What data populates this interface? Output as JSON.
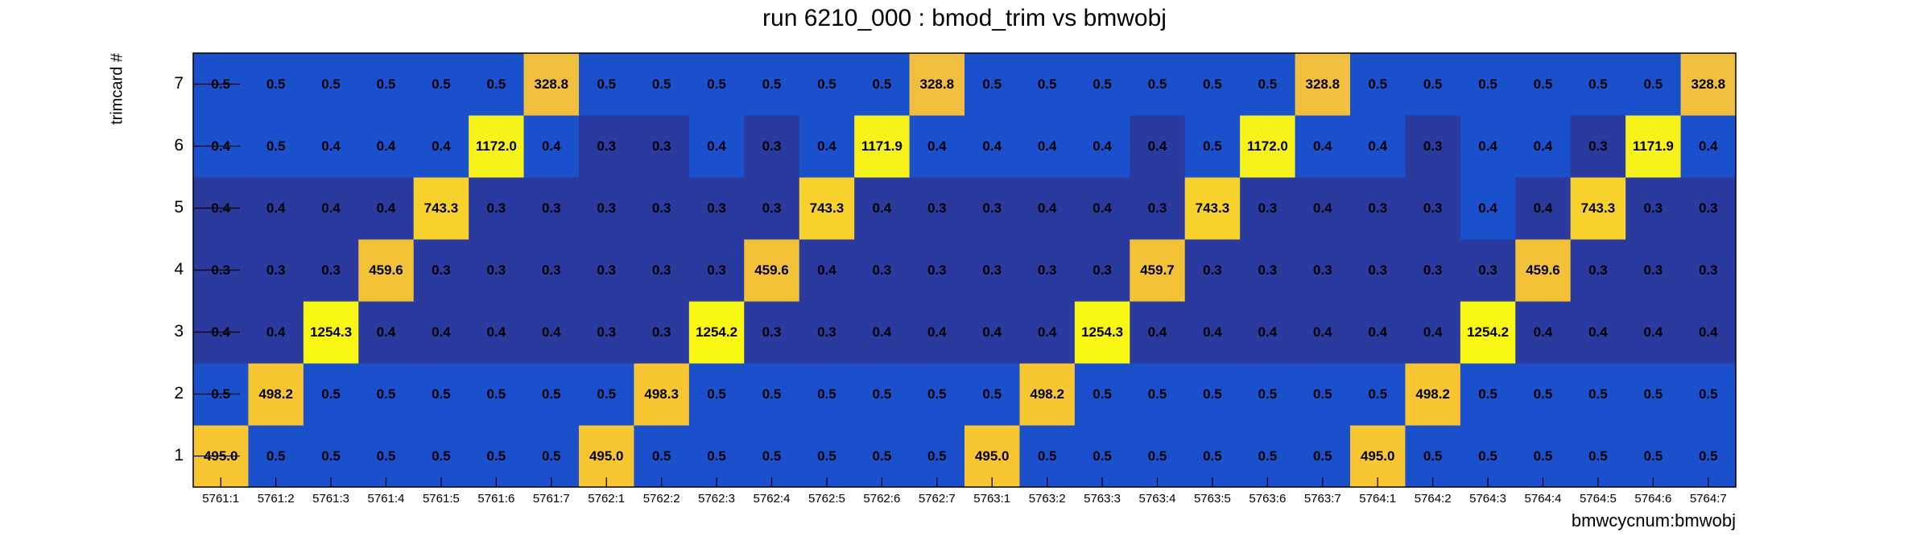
{
  "chart_data": {
    "type": "heatmap",
    "title": "run 6210_000 : bmod_trim vs bmwobj",
    "x_label": "bmwcycnum:bmwobj",
    "y_label": "trimcard #",
    "categories": [
      "5761:1",
      "5761:2",
      "5761:3",
      "5761:4",
      "5761:5",
      "5761:6",
      "5761:7",
      "5762:1",
      "5762:2",
      "5762:3",
      "5762:4",
      "5762:5",
      "5762:6",
      "5762:7",
      "5763:1",
      "5763:2",
      "5763:3",
      "5763:4",
      "5763:5",
      "5763:6",
      "5763:7",
      "5764:1",
      "5764:2",
      "5764:3",
      "5764:4",
      "5764:5",
      "5764:6",
      "5764:7"
    ],
    "series": [
      {
        "name": "1",
        "values": [
          495.0,
          0.5,
          0.5,
          0.5,
          0.5,
          0.5,
          0.5,
          495.0,
          0.5,
          0.5,
          0.5,
          0.5,
          0.5,
          0.5,
          495.0,
          0.5,
          0.5,
          0.5,
          0.5,
          0.5,
          0.5,
          495.0,
          0.5,
          0.5,
          0.5,
          0.5,
          0.5,
          0.5
        ],
        "value_labels": [
          "495.0",
          "0.5",
          "0.5",
          "0.5",
          "0.5",
          "0.5",
          "0.5",
          "495.0",
          "0.5",
          "0.5",
          "0.5",
          "0.5",
          "0.5",
          "0.5",
          "495.0",
          "0.5",
          "0.5",
          "0.5",
          "0.5",
          "0.5",
          "0.5",
          "495.0",
          "0.5",
          "0.5",
          "0.5",
          "0.5",
          "0.5",
          "0.5"
        ],
        "colors": [
          "#f7c631",
          "#1a50cc",
          "#1a50cc",
          "#1a50cc",
          "#1a50cc",
          "#1a50cc",
          "#1a50cc",
          "#f7c631",
          "#1a50cc",
          "#1a50cc",
          "#1a50cc",
          "#1a50cc",
          "#1a50cc",
          "#1a50cc",
          "#f7c631",
          "#1a50cc",
          "#1a50cc",
          "#1a50cc",
          "#1a50cc",
          "#1a50cc",
          "#1a50cc",
          "#f7c631",
          "#1a50cc",
          "#1a50cc",
          "#1a50cc",
          "#1a50cc",
          "#1a50cc",
          "#1a50cc"
        ]
      },
      {
        "name": "2",
        "values": [
          0.5,
          498.2,
          0.5,
          0.5,
          0.5,
          0.5,
          0.5,
          0.5,
          498.3,
          0.5,
          0.5,
          0.5,
          0.5,
          0.5,
          0.5,
          498.2,
          0.5,
          0.5,
          0.5,
          0.5,
          0.5,
          0.5,
          498.2,
          0.5,
          0.5,
          0.5,
          0.5,
          0.5
        ],
        "colors": [
          "#1a50cc",
          "#f7c631",
          "#1a50cc",
          "#1a50cc",
          "#1a50cc",
          "#1a50cc",
          "#1a50cc",
          "#1a50cc",
          "#f7c631",
          "#1a50cc",
          "#1a50cc",
          "#1a50cc",
          "#1a50cc",
          "#1a50cc",
          "#1a50cc",
          "#f7c631",
          "#1a50cc",
          "#1a50cc",
          "#1a50cc",
          "#1a50cc",
          "#1a50cc",
          "#1a50cc",
          "#f7c631",
          "#1a50cc",
          "#1a50cc",
          "#1a50cc",
          "#1a50cc",
          "#1a50cc"
        ]
      },
      {
        "name": "3",
        "values": [
          0.4,
          0.4,
          1254.3,
          0.4,
          0.4,
          0.4,
          0.4,
          0.3,
          0.3,
          1254.2,
          0.3,
          0.3,
          0.4,
          0.4,
          0.4,
          0.4,
          1254.3,
          0.4,
          0.4,
          0.4,
          0.4,
          0.4,
          0.4,
          1254.2,
          0.4,
          0.4,
          0.4,
          0.4
        ],
        "colors": [
          "#2a3a9e",
          "#2a3a9e",
          "#f8f814",
          "#2a3a9e",
          "#2a3a9e",
          "#2a3a9e",
          "#2a3a9e",
          "#2a3a9e",
          "#2a3a9e",
          "#f8f814",
          "#2a3a9e",
          "#2a3a9e",
          "#2a3a9e",
          "#2a3a9e",
          "#2a3a9e",
          "#2a3a9e",
          "#f8f814",
          "#2a3a9e",
          "#2a3a9e",
          "#2a3a9e",
          "#2a3a9e",
          "#2a3a9e",
          "#2a3a9e",
          "#f8f814",
          "#2a3a9e",
          "#2a3a9e",
          "#2a3a9e",
          "#2a3a9e"
        ]
      },
      {
        "name": "4",
        "values": [
          0.3,
          0.3,
          0.3,
          459.6,
          0.3,
          0.3,
          0.3,
          0.3,
          0.3,
          0.3,
          459.6,
          0.4,
          0.3,
          0.3,
          0.3,
          0.3,
          0.3,
          459.7,
          0.3,
          0.3,
          0.3,
          0.3,
          0.3,
          0.3,
          459.6,
          0.3,
          0.3,
          0.3
        ],
        "colors": [
          "#2a3a9e",
          "#2a3a9e",
          "#2a3a9e",
          "#f4c236",
          "#2a3a9e",
          "#2a3a9e",
          "#2a3a9e",
          "#2a3a9e",
          "#2a3a9e",
          "#2a3a9e",
          "#f4c236",
          "#2a3a9e",
          "#2a3a9e",
          "#2a3a9e",
          "#2a3a9e",
          "#2a3a9e",
          "#2a3a9e",
          "#f4c236",
          "#2a3a9e",
          "#2a3a9e",
          "#2a3a9e",
          "#2a3a9e",
          "#2a3a9e",
          "#2a3a9e",
          "#f4c236",
          "#2a3a9e",
          "#2a3a9e",
          "#2a3a9e"
        ]
      },
      {
        "name": "5",
        "values": [
          0.4,
          0.4,
          0.4,
          0.4,
          743.3,
          0.3,
          0.3,
          0.3,
          0.3,
          0.3,
          0.3,
          743.3,
          0.4,
          0.3,
          0.3,
          0.4,
          0.4,
          0.3,
          743.3,
          0.3,
          0.4,
          0.3,
          0.3,
          0.4,
          0.4,
          743.3,
          0.3,
          0.3
        ],
        "colors": [
          "#2a3a9e",
          "#2a3a9e",
          "#2a3a9e",
          "#2a3a9e",
          "#f8d22c",
          "#2a3a9e",
          "#2a3a9e",
          "#2a3a9e",
          "#2a3a9e",
          "#2a3a9e",
          "#2a3a9e",
          "#f8d22c",
          "#2a3a9e",
          "#2a3a9e",
          "#2a3a9e",
          "#2a3a9e",
          "#2a3a9e",
          "#2a3a9e",
          "#f8d22c",
          "#2a3a9e",
          "#2a3a9e",
          "#2a3a9e",
          "#2a3a9e",
          "#1a50cc",
          "#2a3a9e",
          "#f8d22c",
          "#2a3a9e",
          "#2a3a9e"
        ]
      },
      {
        "name": "6",
        "values": [
          0.4,
          0.5,
          0.4,
          0.4,
          0.4,
          1172.0,
          0.4,
          0.3,
          0.3,
          0.4,
          0.3,
          0.4,
          1171.9,
          0.4,
          0.4,
          0.4,
          0.4,
          0.4,
          0.5,
          1172.0,
          0.4,
          0.4,
          0.3,
          0.4,
          0.4,
          0.3,
          1171.9,
          0.4
        ],
        "value_labels": [
          "0.4",
          "0.5",
          "0.4",
          "0.4",
          "0.4",
          "1172.0",
          "0.4",
          "0.3",
          "0.3",
          "0.4",
          "0.3",
          "0.4",
          "1171.9",
          "0.4",
          "0.4",
          "0.4",
          "0.4",
          "0.4",
          "0.5",
          "1172.0",
          "0.4",
          "0.4",
          "0.3",
          "0.4",
          "0.4",
          "0.3",
          "1171.9",
          "0.4"
        ],
        "colors": [
          "#1a50cc",
          "#1a50cc",
          "#1a50cc",
          "#1a50cc",
          "#1a50cc",
          "#f7f31a",
          "#1a50cc",
          "#2a3a9e",
          "#2a3a9e",
          "#1a50cc",
          "#2a3a9e",
          "#1a50cc",
          "#f7f31a",
          "#1a50cc",
          "#1a50cc",
          "#1a50cc",
          "#1a50cc",
          "#2a3a9e",
          "#1a50cc",
          "#f7f31a",
          "#1a50cc",
          "#1a50cc",
          "#2a3a9e",
          "#1a50cc",
          "#1a50cc",
          "#2a3a9e",
          "#f7f31a",
          "#1a50cc"
        ]
      },
      {
        "name": "7",
        "values": [
          0.5,
          0.5,
          0.5,
          0.5,
          0.5,
          0.5,
          328.8,
          0.5,
          0.5,
          0.5,
          0.5,
          0.5,
          0.5,
          328.8,
          0.5,
          0.5,
          0.5,
          0.5,
          0.5,
          0.5,
          328.8,
          0.5,
          0.5,
          0.5,
          0.5,
          0.5,
          0.5,
          328.8
        ],
        "colors": [
          "#1a50cc",
          "#1a50cc",
          "#1a50cc",
          "#1a50cc",
          "#1a50cc",
          "#1a50cc",
          "#f1bf3e",
          "#1a50cc",
          "#1a50cc",
          "#1a50cc",
          "#1a50cc",
          "#1a50cc",
          "#1a50cc",
          "#f1bf3e",
          "#1a50cc",
          "#1a50cc",
          "#1a50cc",
          "#1a50cc",
          "#1a50cc",
          "#1a50cc",
          "#f1bf3e",
          "#1a50cc",
          "#1a50cc",
          "#1a50cc",
          "#1a50cc",
          "#1a50cc",
          "#1a50cc",
          "#f1bf3e"
        ]
      }
    ]
  }
}
